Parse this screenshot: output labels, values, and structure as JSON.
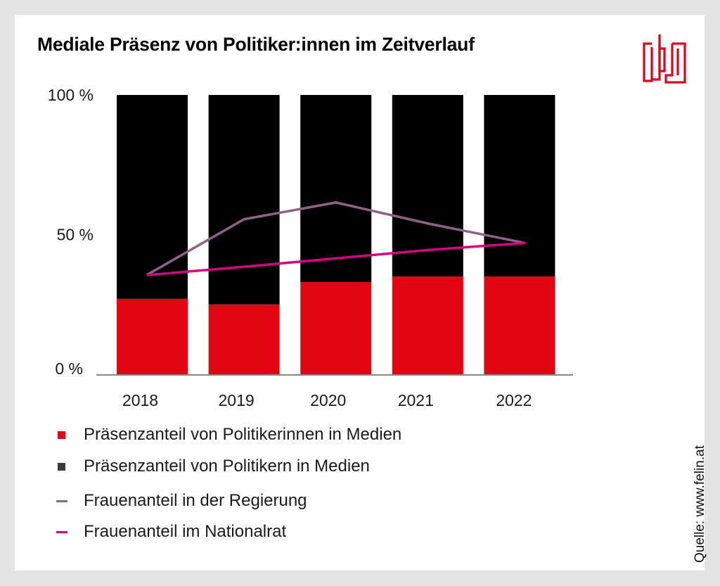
{
  "title": "Mediale Präsenz von Politiker:innen im Zeitverlauf",
  "logo": {
    "icon": "logo-icon",
    "color": "#e2001a"
  },
  "source": "Quelle: www.felin.at",
  "legend": [
    {
      "label": "Präsenzanteil von Politikerinnen in Medien",
      "type": "square",
      "color": "#e20613"
    },
    {
      "label": "Präsenzanteil von Politikern in Medien",
      "type": "square",
      "color": "#3c3c3c"
    },
    {
      "label": "Frauenanteil in der Regierung",
      "type": "line",
      "color": "#8e6287"
    },
    {
      "label": "Frauenanteil im Nationalrat",
      "type": "line",
      "color": "#d4007f"
    }
  ],
  "chart_data": {
    "type": "bar",
    "stacked": true,
    "title": "Mediale Präsenz von Politiker:innen im Zeitverlauf",
    "xlabel": "",
    "ylabel": "",
    "ylim": [
      0,
      100
    ],
    "yticks": [
      {
        "value": 0,
        "label": "0 %"
      },
      {
        "value": 50,
        "label": "50 %"
      },
      {
        "value": 100,
        "label": "100 %"
      }
    ],
    "grid": false,
    "legend_position": "bottom-left",
    "categories": [
      "2018",
      "2019",
      "2020",
      "2021",
      "2022"
    ],
    "series": [
      {
        "name": "Präsenzanteil von Politikerinnen in Medien",
        "kind": "bar",
        "color": "#e20613",
        "values": [
          27,
          25,
          33,
          35,
          35
        ]
      },
      {
        "name": "Präsenzanteil von Politikern in Medien",
        "kind": "bar",
        "color": "#000000",
        "values": [
          73,
          75,
          67,
          65,
          65
        ]
      },
      {
        "name": "Frauenanteil in der Regierung",
        "kind": "line",
        "color": "#8e6287",
        "values": [
          35.5,
          55.5,
          61.5,
          54,
          47
        ]
      },
      {
        "name": "Frauenanteil im Nationalrat",
        "kind": "line",
        "color": "#d4007f",
        "values": [
          35.5,
          38.5,
          41.5,
          44.5,
          47
        ]
      }
    ]
  }
}
